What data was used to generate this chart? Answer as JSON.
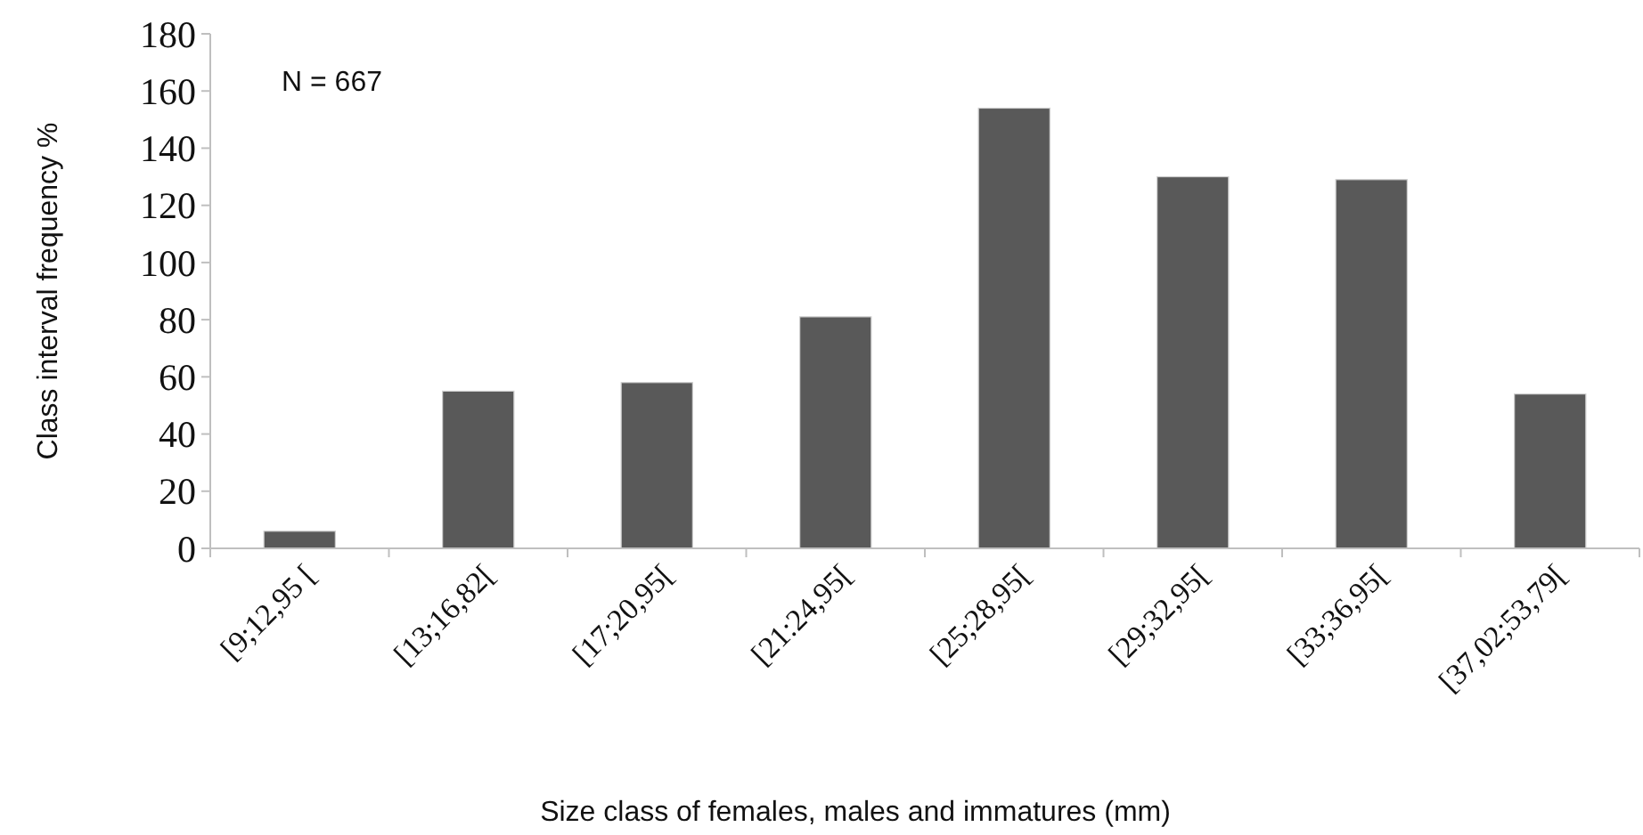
{
  "chart_data": {
    "type": "bar",
    "xlabel": "Size class of females, males and immatures (mm)",
    "ylabel": "Class interval frequency %",
    "categories": [
      "[9;12,95 [",
      "[13;16,82[",
      "[17;20,95[",
      "[21:24,95[",
      "[25;28,95[",
      "[29;32,95[",
      "[33;36,95[",
      "[37,02;53,79["
    ],
    "values": [
      6,
      55,
      58,
      81,
      154,
      130,
      129,
      54
    ],
    "color": "#595959",
    "ylim": [
      0,
      180
    ],
    "yticks": [
      0,
      20,
      40,
      60,
      80,
      100,
      120,
      140,
      160,
      180
    ],
    "grid": false,
    "annotations": [
      "N = 667"
    ]
  }
}
